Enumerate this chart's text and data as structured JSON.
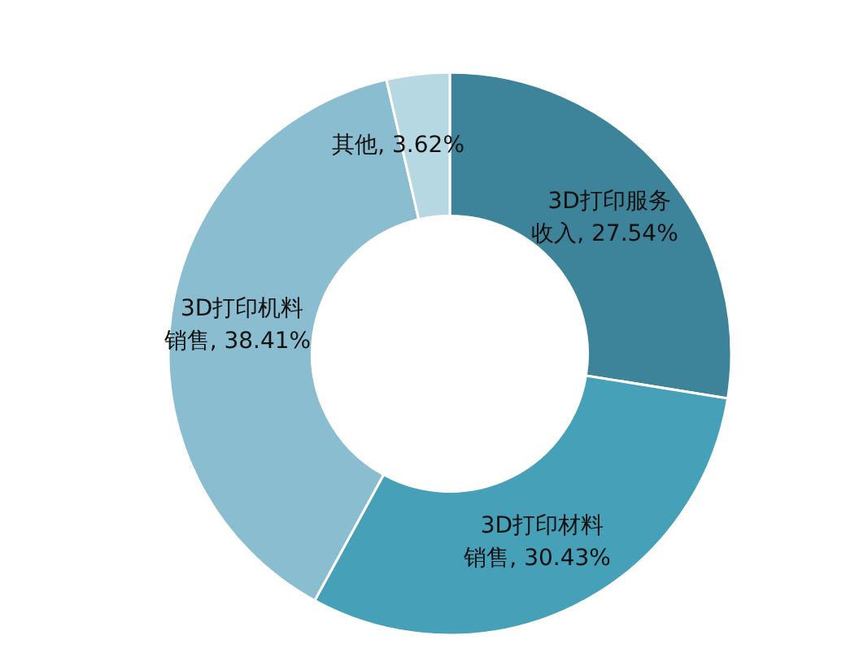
{
  "chart_data": {
    "type": "donut",
    "categories": [
      "3D打印服务收入",
      "3D打印材料销售",
      "3D打印机料销售",
      "其他"
    ],
    "values": [
      27.54,
      30.43,
      38.41,
      3.62
    ],
    "colors": [
      "#3d8399",
      "#45a0b8",
      "#8abdd0",
      "#b5d8e3"
    ],
    "value_labels": [
      ", 27.54%",
      ", 30.43%",
      ", 38.41%",
      ", 3.62%"
    ],
    "legend": false
  }
}
